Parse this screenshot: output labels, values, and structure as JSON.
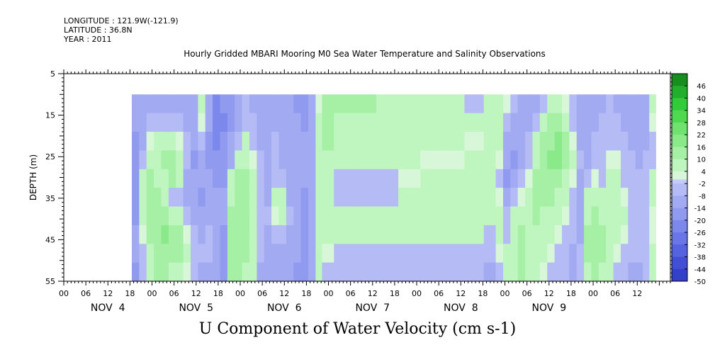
{
  "meta": {
    "longitude": "LONGITUDE : 121.9W(-121.9)",
    "latitude": "LATITUDE : 36.8N",
    "year": "YEAR : 2011"
  },
  "chart_data": {
    "type": "heatmap",
    "title": "Hourly Gridded MBARI Mooring M0 Sea Water Temperature and Salinity Observations",
    "bottom_title": "U Component of Water Velocity (cm s-1)",
    "ylabel": "DEPTH (m)",
    "ylim": [
      55,
      5
    ],
    "yticks": [
      "5",
      "15",
      "25",
      "35",
      "45",
      "55"
    ],
    "data_depth_range": [
      10,
      55
    ],
    "x_hour_ticks": [
      "00",
      "06",
      "12",
      "18",
      "00",
      "06",
      "12",
      "18",
      "00",
      "06",
      "12",
      "18",
      "00",
      "06",
      "12",
      "18",
      "00",
      "06",
      "12",
      "18",
      "00",
      "06",
      "12",
      "18",
      "00",
      "06",
      "12"
    ],
    "x_day_labels": [
      "NOV  4",
      "NOV  5",
      "NOV  6",
      "NOV  7",
      "NOV  8",
      "NOV  9"
    ],
    "colorbar": {
      "labels": [
        "46",
        "40",
        "34",
        "28",
        "22",
        "16",
        "10",
        "4",
        "-2",
        "-8",
        "-14",
        "-20",
        "-26",
        "-32",
        "-38",
        "-44",
        "-50"
      ],
      "range": [
        -50,
        52
      ],
      "positive_colors": [
        "#d8f7d8",
        "#bff5bf",
        "#a6f0a6",
        "#8aea8a",
        "#6fe36f",
        "#4fd94f",
        "#32cc3a",
        "#22b02a",
        "#168f1e",
        "#0d6f14",
        "#074f0c",
        "#033a07"
      ],
      "negative_colors": [
        "#c5cbf8",
        "#b4bbf5",
        "#a2abf2",
        "#909bef",
        "#7d88ec",
        "#6a76e8",
        "#5663e0",
        "#4350d6",
        "#3340c8",
        "#2530b4",
        "#1a2496",
        "#101874",
        "#0a0e58",
        "#060a44"
      ]
    },
    "columns": [
      {
        "hour": 19.5,
        "v": [
          -12,
          -12,
          -14,
          -16,
          -16,
          -14,
          -14,
          -12,
          -12,
          -16
        ]
      },
      {
        "hour": 21.5,
        "v": [
          -10,
          -10,
          -8,
          -4,
          4,
          6,
          4,
          2,
          -2,
          -4
        ]
      },
      {
        "hour": 23.5,
        "v": [
          -8,
          -6,
          2,
          8,
          10,
          12,
          12,
          10,
          8,
          6
        ]
      },
      {
        "hour": 25.5,
        "v": [
          -8,
          -4,
          4,
          6,
          8,
          12,
          14,
          14,
          12,
          10
        ]
      },
      {
        "hour": 27.5,
        "v": [
          -8,
          -4,
          6,
          10,
          4,
          6,
          12,
          16,
          14,
          10
        ]
      },
      {
        "hour": 29.5,
        "v": [
          -8,
          -4,
          4,
          12,
          10,
          -2,
          8,
          14,
          12,
          8
        ]
      },
      {
        "hour": 31.5,
        "v": [
          -10,
          -6,
          2,
          6,
          8,
          -4,
          4,
          10,
          10,
          6
        ]
      },
      {
        "hour": 33.5,
        "v": [
          -12,
          -10,
          -6,
          -2,
          -8,
          -12,
          -6,
          2,
          4,
          2
        ]
      },
      {
        "hour": 35.5,
        "v": [
          -10,
          -8,
          -10,
          -14,
          -12,
          -12,
          -8,
          -4,
          -2,
          -4
        ]
      },
      {
        "hour": 37.5,
        "v": [
          4,
          2,
          -6,
          -12,
          -12,
          -14,
          -12,
          -8,
          -6,
          -8
        ]
      },
      {
        "hour": 39.5,
        "v": [
          -12,
          -10,
          -14,
          -14,
          -12,
          -10,
          -8,
          -6,
          -6,
          -8
        ]
      },
      {
        "hour": 41.5,
        "v": [
          -20,
          -22,
          -20,
          -18,
          -16,
          -12,
          -10,
          -8,
          -10,
          -12
        ]
      },
      {
        "hour": 43.5,
        "v": [
          -18,
          -20,
          -18,
          -16,
          -14,
          -12,
          -12,
          -14,
          -14,
          -14
        ]
      },
      {
        "hour": 45.5,
        "v": [
          -14,
          -14,
          -10,
          -8,
          4,
          8,
          10,
          12,
          12,
          10
        ]
      },
      {
        "hour": 47.5,
        "v": [
          -10,
          -8,
          -6,
          4,
          10,
          12,
          14,
          14,
          14,
          12
        ]
      },
      {
        "hour": 49.5,
        "v": [
          -6,
          -2,
          4,
          8,
          10,
          10,
          12,
          12,
          10,
          8
        ]
      },
      {
        "hour": 51.5,
        "v": [
          -8,
          -4,
          -2,
          2,
          4,
          6,
          8,
          8,
          6,
          4
        ]
      },
      {
        "hour": 53.5,
        "v": [
          -10,
          -8,
          -8,
          -6,
          -4,
          -2,
          -4,
          -6,
          -6,
          -8
        ]
      },
      {
        "hour": 55.5,
        "v": [
          -12,
          -10,
          -10,
          -10,
          -8,
          -8,
          -6,
          -8,
          -10,
          -10
        ]
      },
      {
        "hour": 57.5,
        "v": [
          -10,
          -8,
          -6,
          -4,
          -2,
          4,
          2,
          -4,
          -8,
          -10
        ]
      },
      {
        "hour": 59.5,
        "v": [
          -12,
          -10,
          -10,
          -8,
          -2,
          4,
          4,
          -2,
          -8,
          -10
        ]
      },
      {
        "hour": 61.5,
        "v": [
          -10,
          -10,
          -12,
          -10,
          -8,
          -8,
          -6,
          -8,
          -10,
          -12
        ]
      },
      {
        "hour": 63.5,
        "v": [
          -14,
          -12,
          -12,
          -10,
          -8,
          -10,
          -12,
          -12,
          -12,
          -14
        ]
      },
      {
        "hour": 65.5,
        "v": [
          -14,
          -14,
          -12,
          -12,
          -12,
          -14,
          -14,
          -14,
          -14,
          -14
        ]
      },
      {
        "hour": 67.5,
        "v": [
          -8,
          -8,
          -10,
          -10,
          -10,
          -12,
          -12,
          -12,
          -10,
          -10
        ]
      },
      {
        "hour": 69.5,
        "v": [
          2,
          4,
          4,
          6,
          6,
          6,
          6,
          4,
          4,
          4
        ]
      },
      {
        "hour": 71.0,
        "v": [
          14,
          10,
          10,
          8,
          6,
          6,
          6,
          6,
          2,
          -2
        ]
      },
      {
        "hour": 76.0,
        "v": [
          12,
          8,
          6,
          4,
          -4,
          -4,
          4,
          4,
          -2,
          -4
        ]
      },
      {
        "hour": 82.0,
        "v": [
          10,
          8,
          6,
          4,
          -2,
          -4,
          6,
          6,
          -2,
          -4
        ]
      },
      {
        "hour": 88.0,
        "v": [
          8,
          6,
          6,
          4,
          -2,
          -6,
          6,
          6,
          -2,
          -6
        ]
      },
      {
        "hour": 94.0,
        "v": [
          6,
          6,
          6,
          4,
          2,
          4,
          6,
          6,
          -2,
          -6
        ]
      },
      {
        "hour": 100.0,
        "v": [
          6,
          6,
          4,
          2,
          4,
          6,
          6,
          6,
          -2,
          -6
        ]
      },
      {
        "hour": 106.0,
        "v": [
          4,
          6,
          4,
          2,
          4,
          6,
          6,
          6,
          -4,
          -6
        ]
      },
      {
        "hour": 112.0,
        "v": [
          -2,
          4,
          2,
          4,
          6,
          6,
          6,
          6,
          -4,
          -6
        ]
      },
      {
        "hour": 116.5,
        "v": [
          6,
          6,
          6,
          6,
          6,
          6,
          6,
          -2,
          -4,
          -8
        ]
      },
      {
        "hour": 118.5,
        "v": [
          4,
          4,
          4,
          2,
          -4,
          2,
          4,
          4,
          2,
          -4
        ]
      },
      {
        "hour": 120.5,
        "v": [
          2,
          -4,
          -8,
          -12,
          -14,
          -10,
          -6,
          -2,
          4,
          6
        ]
      },
      {
        "hour": 122.5,
        "v": [
          -4,
          -8,
          -12,
          -14,
          -12,
          -6,
          4,
          6,
          8,
          8
        ]
      },
      {
        "hour": 124.5,
        "v": [
          -8,
          -10,
          -10,
          -8,
          -4,
          2,
          6,
          10,
          10,
          10
        ]
      },
      {
        "hour": 126.5,
        "v": [
          -10,
          -8,
          -6,
          -2,
          2,
          4,
          6,
          8,
          8,
          8
        ]
      },
      {
        "hour": 128.5,
        "v": [
          -8,
          -4,
          4,
          8,
          10,
          10,
          10,
          8,
          6,
          4
        ]
      },
      {
        "hour": 130.5,
        "v": [
          -4,
          4,
          10,
          12,
          12,
          10,
          8,
          6,
          4,
          2
        ]
      },
      {
        "hour": 132.5,
        "v": [
          4,
          10,
          14,
          16,
          14,
          12,
          8,
          4,
          2,
          -2
        ]
      },
      {
        "hour": 134.5,
        "v": [
          6,
          12,
          16,
          16,
          12,
          8,
          4,
          2,
          -2,
          -4
        ]
      },
      {
        "hour": 136.5,
        "v": [
          2,
          6,
          10,
          10,
          8,
          4,
          2,
          -2,
          -4,
          -6
        ]
      },
      {
        "hour": 138.5,
        "v": [
          -4,
          -2,
          2,
          4,
          2,
          -2,
          -4,
          -6,
          -8,
          -8
        ]
      },
      {
        "hour": 140.5,
        "v": [
          -10,
          -10,
          -8,
          -6,
          -8,
          -8,
          -8,
          -8,
          -6,
          -4
        ]
      },
      {
        "hour": 142.5,
        "v": [
          -12,
          -12,
          -10,
          -8,
          -4,
          4,
          8,
          10,
          10,
          8
        ]
      },
      {
        "hour": 144.5,
        "v": [
          -10,
          -8,
          -6,
          -4,
          2,
          6,
          10,
          12,
          12,
          10
        ]
      },
      {
        "hour": 146.5,
        "v": [
          -8,
          -6,
          -4,
          -4,
          -2,
          4,
          8,
          10,
          10,
          8
        ]
      },
      {
        "hour": 148.5,
        "v": [
          -6,
          -6,
          -2,
          2,
          4,
          4,
          6,
          6,
          4,
          4
        ]
      },
      {
        "hour": 150.5,
        "v": [
          -8,
          -6,
          -4,
          2,
          4,
          6,
          6,
          4,
          2,
          -2
        ]
      },
      {
        "hour": 152.5,
        "v": [
          -10,
          -8,
          -6,
          -4,
          -2,
          2,
          4,
          2,
          -4,
          -6
        ]
      },
      {
        "hour": 154.5,
        "v": [
          -12,
          -10,
          -8,
          -6,
          -4,
          -4,
          -2,
          -4,
          -6,
          -8
        ]
      },
      {
        "hour": 156.5,
        "v": [
          -10,
          -10,
          -8,
          -8,
          -6,
          -6,
          -6,
          -6,
          -6,
          -8
        ]
      },
      {
        "hour": 158.5,
        "v": [
          -8,
          -8,
          -8,
          -6,
          -4,
          -4,
          -4,
          -4,
          -4,
          -6
        ]
      },
      {
        "hour": 160.0,
        "v": [
          4,
          2,
          -2,
          -2,
          4,
          4,
          2,
          2,
          4,
          4
        ]
      }
    ]
  }
}
